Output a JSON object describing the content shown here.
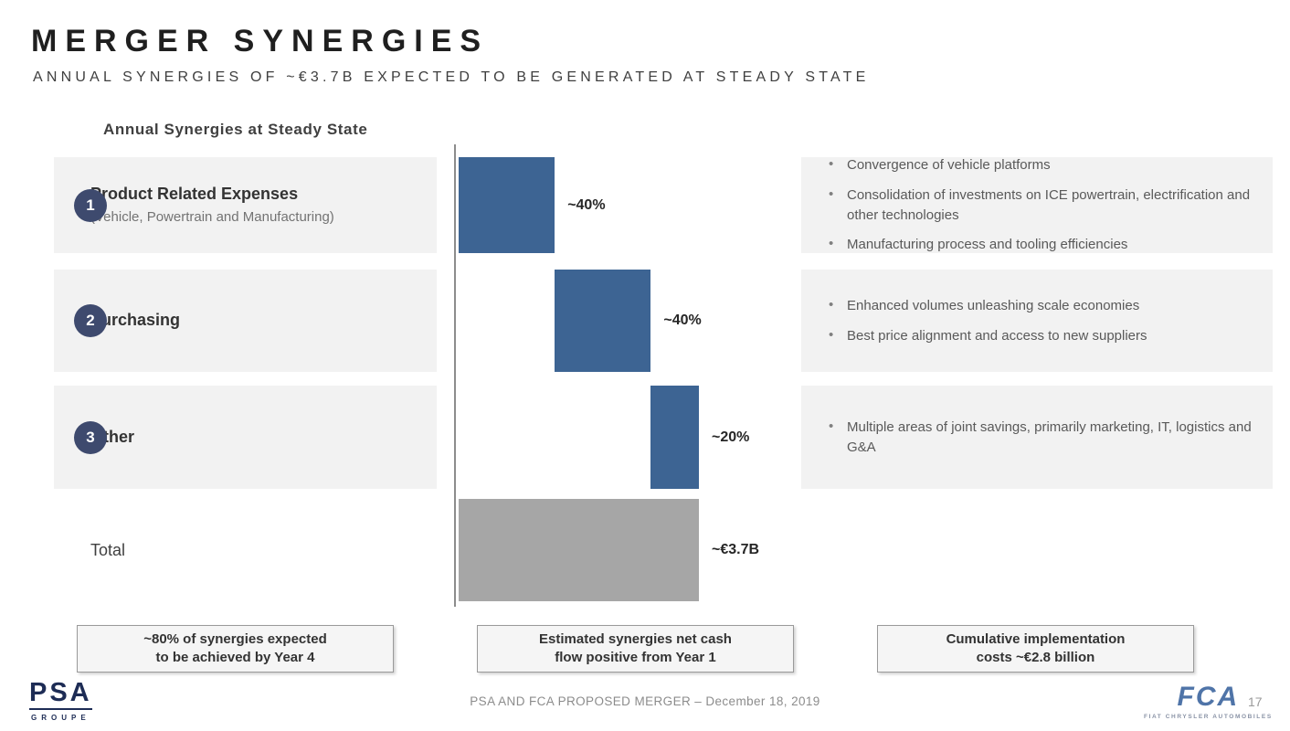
{
  "slide": {
    "title": "MERGER SYNERGIES",
    "subtitle": "ANNUAL SYNERGIES OF ~€3.7B EXPECTED TO BE GENERATED AT STEADY STATE",
    "chart_header": "Annual Synergies at Steady State"
  },
  "rows": [
    {
      "badge": "1",
      "title": "Product Related Expenses",
      "subtitle": "(Vehicle, Powertrain and Manufacturing)",
      "bullets": [
        "Convergence of vehicle platforms",
        "Consolidation of investments on ICE powertrain, electrification and other technologies",
        "Manufacturing process and tooling efficiencies"
      ]
    },
    {
      "badge": "2",
      "title": "Purchasing",
      "subtitle": "",
      "bullets": [
        "Enhanced volumes unleashing scale economies",
        "Best price alignment and access to new suppliers"
      ]
    },
    {
      "badge": "3",
      "title": "Other",
      "subtitle": "",
      "bullets": [
        "Multiple areas of joint savings, primarily marketing, IT, logistics and G&A"
      ]
    }
  ],
  "total": {
    "label": "Total"
  },
  "chart_data": {
    "type": "bar",
    "subtype": "waterfall",
    "title": "Annual Synergies at Steady State",
    "categories": [
      "Product Related Expenses",
      "Purchasing",
      "Other",
      "Total"
    ],
    "values": [
      40,
      40,
      20,
      100
    ],
    "value_labels": [
      "~40%",
      "~40%",
      "~20%",
      "~€3.7B"
    ],
    "total_amount": "~€3.7B",
    "colors": {
      "segment": "#3d6493",
      "total": "#a6a6a6"
    },
    "legend": "off",
    "grid": "off"
  },
  "callouts": [
    {
      "line1": "~80% of synergies expected",
      "line2": "to be achieved by Year 4"
    },
    {
      "line1": "Estimated synergies net cash",
      "line2": "flow positive from Year 1"
    },
    {
      "line1": "Cumulative implementation",
      "line2": "costs ~€2.8 billion"
    }
  ],
  "footer": {
    "caption": "PSA AND FCA PROPOSED MERGER – December 18, 2019",
    "page_number": "17",
    "psa_logo": "PSA",
    "psa_logo_sub": "GROUPE",
    "fca_logo": "FCA",
    "fca_logo_sub": "FIAT CHRYSLER AUTOMOBILES"
  }
}
